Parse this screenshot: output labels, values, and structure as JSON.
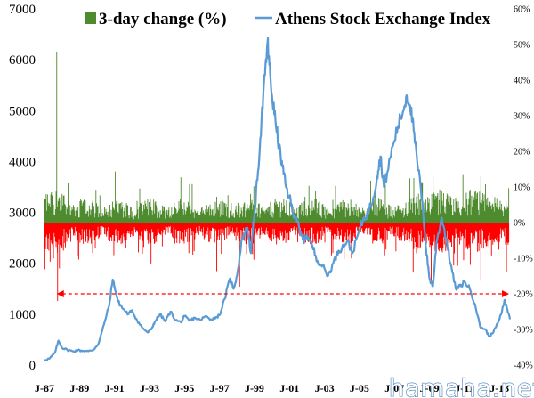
{
  "watermark": "hamaha.net",
  "chart_data": {
    "type": "line",
    "x_range": [
      1987.0,
      2013.6
    ],
    "x_tick_labels": [
      "J-87",
      "J-89",
      "J-91",
      "J-93",
      "J-95",
      "J-97",
      "J-99",
      "J-01",
      "J-03",
      "J-05",
      "J-07",
      "J-09",
      "J-11",
      "J-13"
    ],
    "left_axis": {
      "ylim": [
        0,
        7000
      ],
      "ticks": [
        0,
        1000,
        2000,
        3000,
        4000,
        5000,
        6000,
        7000
      ]
    },
    "right_axis": {
      "ylim": [
        -40,
        60
      ],
      "ticks": [
        "-40%",
        "-30%",
        "-20%",
        "-10%",
        "0%",
        "10%",
        "20%",
        "30%",
        "40%",
        "50%",
        "60%"
      ]
    },
    "legend": {
      "placement": "top",
      "entries": [
        {
          "name": "3-day change (%)",
          "color": "#4e8a2e"
        },
        {
          "name": "Athens Stock Exchange Index",
          "color": "#5b9bd5"
        }
      ]
    },
    "series": [
      {
        "name": "Athens Stock Exchange Index",
        "axis": "left",
        "color": "#5b9bd5",
        "points": [
          [
            1987.0,
            100
          ],
          [
            1987.3,
            130
          ],
          [
            1987.6,
            240
          ],
          [
            1987.8,
            480
          ],
          [
            1988.0,
            340
          ],
          [
            1988.3,
            300
          ],
          [
            1988.6,
            270
          ],
          [
            1988.9,
            290
          ],
          [
            1989.2,
            280
          ],
          [
            1989.5,
            270
          ],
          [
            1989.8,
            300
          ],
          [
            1990.1,
            430
          ],
          [
            1990.4,
            800
          ],
          [
            1990.7,
            1180
          ],
          [
            1990.9,
            1680
          ],
          [
            1991.0,
            1550
          ],
          [
            1991.2,
            1250
          ],
          [
            1991.5,
            1100
          ],
          [
            1991.8,
            1000
          ],
          [
            1992.0,
            1080
          ],
          [
            1992.3,
            870
          ],
          [
            1992.6,
            730
          ],
          [
            1992.9,
            640
          ],
          [
            1993.1,
            700
          ],
          [
            1993.3,
            850
          ],
          [
            1993.6,
            1000
          ],
          [
            1993.9,
            860
          ],
          [
            1994.2,
            1050
          ],
          [
            1994.5,
            880
          ],
          [
            1994.8,
            840
          ],
          [
            1995.0,
            960
          ],
          [
            1995.3,
            870
          ],
          [
            1995.6,
            930
          ],
          [
            1995.9,
            880
          ],
          [
            1996.2,
            960
          ],
          [
            1996.5,
            900
          ],
          [
            1996.8,
            940
          ],
          [
            1997.0,
            980
          ],
          [
            1997.3,
            1300
          ],
          [
            1997.6,
            1700
          ],
          [
            1997.8,
            1500
          ],
          [
            1998.0,
            1750
          ],
          [
            1998.3,
            2500
          ],
          [
            1998.6,
            2700
          ],
          [
            1998.8,
            2200
          ],
          [
            1999.0,
            3000
          ],
          [
            1999.2,
            3800
          ],
          [
            1999.4,
            4800
          ],
          [
            1999.6,
            5700
          ],
          [
            1999.75,
            6350
          ],
          [
            1999.85,
            5900
          ],
          [
            2000.0,
            5300
          ],
          [
            2000.2,
            4800
          ],
          [
            2000.4,
            4300
          ],
          [
            2000.6,
            3900
          ],
          [
            2000.8,
            3500
          ],
          [
            2001.0,
            3300
          ],
          [
            2001.2,
            3000
          ],
          [
            2001.4,
            2900
          ],
          [
            2001.6,
            2600
          ],
          [
            2001.8,
            2450
          ],
          [
            2002.0,
            2550
          ],
          [
            2002.3,
            2350
          ],
          [
            2002.6,
            2050
          ],
          [
            2002.9,
            1950
          ],
          [
            2003.2,
            1750
          ],
          [
            2003.5,
            2000
          ],
          [
            2003.8,
            2250
          ],
          [
            2004.0,
            2300
          ],
          [
            2004.3,
            2450
          ],
          [
            2004.6,
            2200
          ],
          [
            2004.9,
            2550
          ],
          [
            2005.2,
            2850
          ],
          [
            2005.5,
            3000
          ],
          [
            2005.8,
            3300
          ],
          [
            2006.0,
            3700
          ],
          [
            2006.2,
            4100
          ],
          [
            2006.4,
            3500
          ],
          [
            2006.6,
            3800
          ],
          [
            2006.9,
            4300
          ],
          [
            2007.2,
            4700
          ],
          [
            2007.5,
            5000
          ],
          [
            2007.7,
            5300
          ],
          [
            2007.9,
            5100
          ],
          [
            2008.1,
            4600
          ],
          [
            2008.3,
            4000
          ],
          [
            2008.6,
            3200
          ],
          [
            2008.8,
            2300
          ],
          [
            2009.0,
            1700
          ],
          [
            2009.2,
            1550
          ],
          [
            2009.4,
            2400
          ],
          [
            2009.7,
            2900
          ],
          [
            2010.0,
            2400
          ],
          [
            2010.2,
            2000
          ],
          [
            2010.5,
            1500
          ],
          [
            2010.8,
            1550
          ],
          [
            2011.0,
            1650
          ],
          [
            2011.3,
            1500
          ],
          [
            2011.6,
            1200
          ],
          [
            2011.9,
            750
          ],
          [
            2012.2,
            700
          ],
          [
            2012.4,
            560
          ],
          [
            2012.6,
            620
          ],
          [
            2012.9,
            820
          ],
          [
            2013.1,
            1000
          ],
          [
            2013.2,
            1150
          ],
          [
            2013.3,
            1280
          ],
          [
            2013.45,
            1100
          ],
          [
            2013.6,
            900
          ]
        ]
      },
      {
        "name": "3-day change (%)",
        "axis": "right",
        "color": "#4e8a2e",
        "negative_color": "#ff0000",
        "spikes": [
          [
            1987.7,
            48
          ],
          [
            1987.75,
            -22
          ],
          [
            1998.15,
            -18
          ],
          [
            2009.1,
            -16
          ],
          [
            2013.4,
            -14
          ]
        ]
      },
      {
        "name": "-20% threshold",
        "axis": "right",
        "color": "#ff0000",
        "style": "dashed",
        "value": -20,
        "x_range": [
          1987.7,
          2013.55
        ]
      }
    ]
  }
}
